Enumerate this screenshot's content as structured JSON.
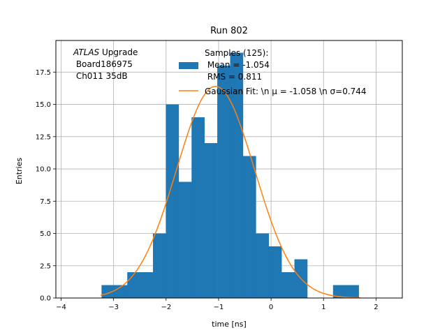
{
  "chart_data": {
    "type": "bar",
    "title": "Run 802",
    "xlabel": "time [ns]",
    "ylabel": "Entries",
    "xlim": [
      -4.1,
      2.5
    ],
    "ylim": [
      0,
      19.95
    ],
    "xticks": [
      -4,
      -3,
      -2,
      -1,
      0,
      1,
      2
    ],
    "xtick_labels": [
      "−4",
      "−3",
      "−2",
      "−1",
      "0",
      "1",
      "2"
    ],
    "yticks": [
      0,
      2.5,
      5,
      7.5,
      10,
      12.5,
      15,
      17.5
    ],
    "ytick_labels": [
      "0.0",
      "2.5",
      "5.0",
      "7.5",
      "10.0",
      "12.5",
      "15.0",
      "17.5"
    ],
    "grid": true,
    "annotation": {
      "lines": [
        "Upgrade",
        " Board186975",
        " Ch011 35dB"
      ],
      "italic_word": "ATLAS"
    },
    "legend": {
      "placement": "top-right",
      "histogram": {
        "label_lines": [
          "Samples (125):",
          " Mean = -1.054",
          " RMS = 0.811"
        ],
        "color": "#1f77b4"
      },
      "fit": {
        "label": "Gaussian Fit: \\n μ = -1.058 \\n σ=0.744",
        "color": "#ff7f0e"
      }
    },
    "histogram": {
      "bin_edges": [
        -3.25,
        -3.0,
        -2.75,
        -2.5,
        -2.25,
        -2.0,
        -1.75,
        -1.5,
        -1.25,
        -1.0,
        -0.75,
        -0.5,
        -0.25,
        0.0,
        0.25,
        0.5,
        0.75,
        1.0,
        1.25,
        1.5,
        1.75
      ],
      "bar_edges_step": 0.245,
      "bar_x0": -3.23,
      "counts": [
        1,
        1,
        2,
        2,
        5,
        15,
        9,
        14,
        12,
        18,
        19,
        11,
        5,
        4,
        2,
        3,
        0,
        0,
        1,
        1
      ],
      "color": "#1f77b4"
    },
    "gaussian_fit": {
      "mu": -1.058,
      "sigma": 0.744,
      "amplitude": 16.4,
      "x_range": [
        -3.25,
        1.7
      ],
      "color": "#ff7f0e"
    }
  }
}
